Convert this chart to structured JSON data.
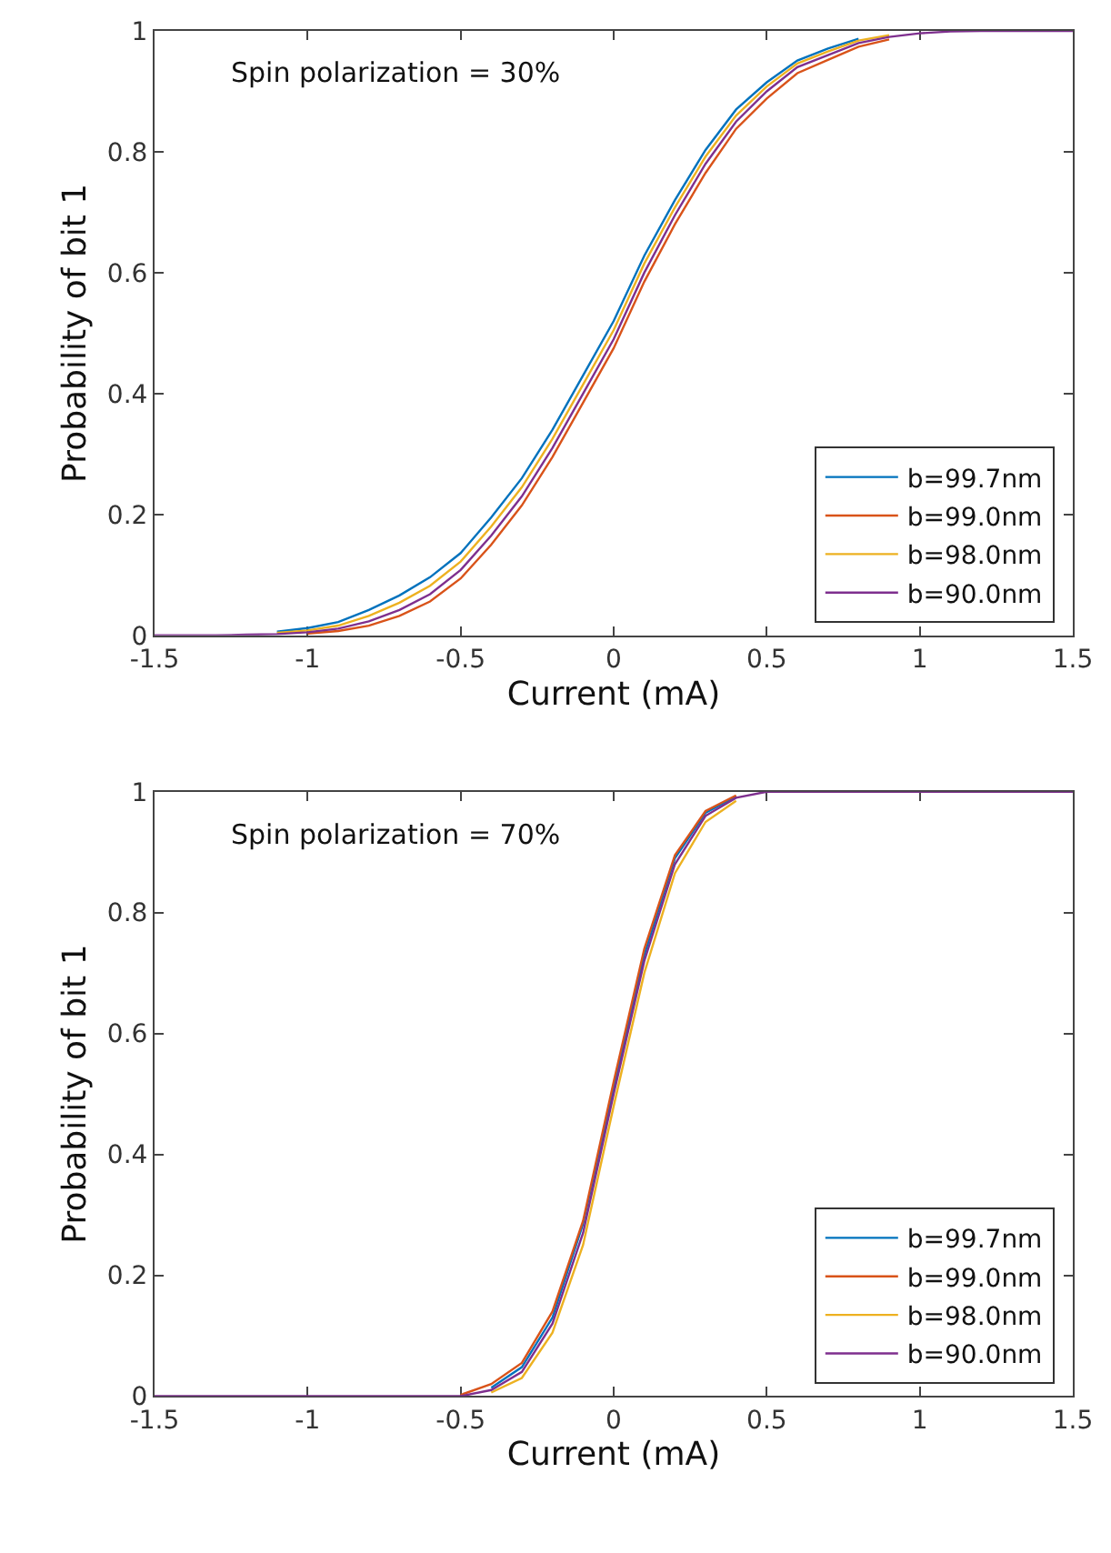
{
  "chart_data": [
    {
      "type": "line",
      "xlabel": "Current (mA)",
      "ylabel": "Probability of bit 1",
      "annotations": [
        "Spin polarization = 30%"
      ],
      "x": [
        -1.5,
        -1.4,
        -1.3,
        -1.2,
        -1.1,
        -1.0,
        -0.9,
        -0.8,
        -0.7,
        -0.6,
        -0.5,
        -0.4,
        -0.3,
        -0.2,
        -0.1,
        0,
        0.1,
        0.2,
        0.3,
        0.4,
        0.5,
        0.6,
        0.7,
        0.8,
        0.9,
        1.0,
        1.1,
        1.2,
        1.3,
        1.4,
        1.5
      ],
      "series": [
        {
          "name": "b=99.7nm",
          "color": "#0072bd",
          "values": [
            null,
            null,
            null,
            null,
            0.006,
            0.012,
            0.022,
            0.042,
            0.066,
            0.096,
            0.136,
            0.195,
            0.26,
            0.34,
            0.43,
            0.52,
            0.628,
            0.72,
            0.803,
            0.87,
            0.915,
            0.951,
            0.971,
            0.987,
            null,
            null,
            null,
            null,
            null,
            null,
            null
          ]
        },
        {
          "name": "b=99.0nm",
          "color": "#d95319",
          "values": [
            null,
            null,
            null,
            null,
            null,
            0.003,
            0.007,
            0.016,
            0.032,
            0.056,
            0.094,
            0.15,
            0.215,
            0.295,
            0.385,
            0.475,
            0.585,
            0.68,
            0.765,
            0.838,
            0.888,
            0.93,
            0.952,
            0.974,
            0.986,
            null,
            null,
            null,
            null,
            null,
            null
          ]
        },
        {
          "name": "b=98.0nm",
          "color": "#edb120",
          "values": [
            null,
            null,
            null,
            null,
            0.004,
            0.008,
            0.016,
            0.032,
            0.054,
            0.082,
            0.122,
            0.18,
            0.245,
            0.325,
            0.415,
            0.505,
            0.615,
            0.708,
            0.792,
            0.86,
            0.908,
            0.946,
            0.966,
            0.984,
            0.993,
            null,
            null,
            null,
            null,
            null,
            null
          ]
        },
        {
          "name": "b=90.0nm",
          "color": "#7e2f8e",
          "values": [
            0,
            0,
            0,
            0.001,
            0.002,
            0.005,
            0.011,
            0.023,
            0.042,
            0.068,
            0.108,
            0.165,
            0.23,
            0.31,
            0.4,
            0.49,
            0.6,
            0.695,
            0.78,
            0.85,
            0.9,
            0.94,
            0.96,
            0.98,
            0.99,
            0.996,
            0.999,
            1,
            1,
            1,
            1
          ]
        }
      ],
      "xlim": [
        -1.5,
        1.5
      ],
      "xticks": [
        -1.5,
        -1,
        -0.5,
        0,
        0.5,
        1,
        1.5
      ],
      "ylim": [
        0,
        1
      ],
      "yticks": [
        0,
        0.2,
        0.4,
        0.6,
        0.8,
        1
      ],
      "legend": "bottom right",
      "line_style": "solid"
    },
    {
      "type": "line",
      "xlabel": "Current (mA)",
      "ylabel": "Probability of bit 1",
      "annotations": [
        "Spin polarization = 70%"
      ],
      "x": [
        -1.5,
        -1.4,
        -1.3,
        -1.2,
        -1.1,
        -1.0,
        -0.9,
        -0.8,
        -0.7,
        -0.6,
        -0.5,
        -0.4,
        -0.3,
        -0.2,
        -0.1,
        0,
        0.1,
        0.2,
        0.3,
        0.4,
        0.5,
        0.6,
        0.7,
        0.8,
        0.9,
        1.0,
        1.1,
        1.2,
        1.3,
        1.4,
        1.5
      ],
      "series": [
        {
          "name": "b=99.7nm",
          "color": "#0072bd",
          "values": [
            null,
            null,
            null,
            null,
            null,
            null,
            null,
            null,
            null,
            null,
            null,
            0.014,
            0.048,
            0.13,
            0.285,
            0.51,
            0.73,
            0.89,
            0.965,
            0.992,
            null,
            null,
            null,
            null,
            null,
            null,
            null,
            null,
            null,
            null,
            null
          ]
        },
        {
          "name": "b=99.0nm",
          "color": "#d95319",
          "values": [
            null,
            null,
            null,
            null,
            null,
            null,
            null,
            null,
            null,
            null,
            0.002,
            0.02,
            0.055,
            0.14,
            0.29,
            0.52,
            0.74,
            0.895,
            0.968,
            0.994,
            null,
            null,
            null,
            null,
            null,
            null,
            null,
            null,
            null,
            null,
            null
          ]
        },
        {
          "name": "b=98.0nm",
          "color": "#edb120",
          "values": [
            null,
            null,
            null,
            null,
            null,
            null,
            null,
            null,
            null,
            null,
            null,
            0.006,
            0.03,
            0.105,
            0.25,
            0.48,
            0.7,
            0.865,
            0.95,
            0.985,
            null,
            null,
            null,
            null,
            null,
            null,
            null,
            null,
            null,
            null,
            null
          ]
        },
        {
          "name": "b=90.0nm",
          "color": "#7e2f8e",
          "values": [
            0,
            0,
            0,
            0,
            0,
            0,
            0,
            0,
            0,
            0,
            0,
            0.01,
            0.04,
            0.12,
            0.27,
            0.5,
            0.72,
            0.88,
            0.96,
            0.99,
            1,
            1,
            1,
            1,
            1,
            1,
            1,
            1,
            1,
            1,
            1
          ]
        }
      ],
      "xlim": [
        -1.5,
        1.5
      ],
      "xticks": [
        -1.5,
        -1,
        -0.5,
        0,
        0.5,
        1,
        1.5
      ],
      "ylim": [
        0,
        1
      ],
      "yticks": [
        0,
        0.2,
        0.4,
        0.6,
        0.8,
        1
      ],
      "legend": "bottom right",
      "line_style": "solid"
    }
  ]
}
